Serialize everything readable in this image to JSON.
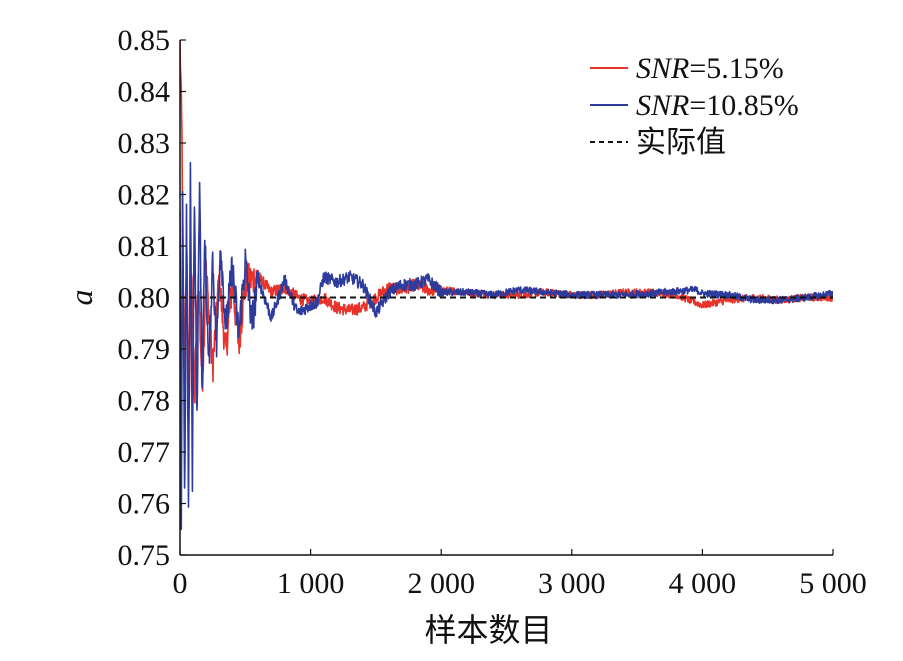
{
  "chart_data": {
    "type": "line",
    "xlabel": "样本数目",
    "ylabel": "a",
    "xlim": [
      0,
      5000
    ],
    "ylim": [
      0.75,
      0.85
    ],
    "grid": false,
    "legend_position": "top-right",
    "x_ticks": [
      0,
      1000,
      2000,
      3000,
      4000,
      5000
    ],
    "x_tick_labels": [
      "0",
      "1 000",
      "2 000",
      "3 000",
      "4 000",
      "5 000"
    ],
    "y_ticks": [
      0.75,
      0.76,
      0.77,
      0.78,
      0.79,
      0.8,
      0.81,
      0.82,
      0.83,
      0.84,
      0.85
    ],
    "y_tick_labels": [
      "0.75",
      "0.76",
      "0.77",
      "0.78",
      "0.79",
      "0.80",
      "0.81",
      "0.82",
      "0.83",
      "0.84",
      "0.85"
    ],
    "legend": [
      {
        "italic": "SNR",
        "text": "=5.15%",
        "color": "#e8332a",
        "dash": "solid"
      },
      {
        "italic": "SNR",
        "text": "=10.85%",
        "color": "#2c3b9c",
        "dash": "solid"
      },
      {
        "italic": "",
        "text": "实际值",
        "color": "#111111",
        "dash": "dashed"
      }
    ],
    "series": [
      {
        "name": "SNR=5.15%",
        "color": "#e8332a",
        "x": [
          0,
          15,
          30,
          50,
          70,
          90,
          110,
          140,
          170,
          200,
          250,
          300,
          350,
          400,
          450,
          500,
          600,
          700,
          800,
          900,
          1000,
          1100,
          1200,
          1300,
          1400,
          1500,
          1600,
          1700,
          1800,
          1900,
          2000,
          2200,
          2400,
          2600,
          2800,
          3000,
          3200,
          3400,
          3600,
          3800,
          4000,
          4200,
          4400,
          4600,
          4800,
          5000
        ],
        "y": [
          0.85,
          0.83,
          0.785,
          0.81,
          0.78,
          0.806,
          0.779,
          0.804,
          0.783,
          0.805,
          0.786,
          0.804,
          0.789,
          0.803,
          0.791,
          0.803,
          0.804,
          0.801,
          0.802,
          0.8,
          0.799,
          0.8,
          0.798,
          0.7975,
          0.798,
          0.8,
          0.802,
          0.8015,
          0.8025,
          0.8015,
          0.8015,
          0.801,
          0.8005,
          0.8005,
          0.801,
          0.8005,
          0.8005,
          0.801,
          0.801,
          0.8005,
          0.7985,
          0.7995,
          0.8,
          0.7995,
          0.8,
          0.8
        ]
      },
      {
        "name": "SNR=10.85%",
        "color": "#2c3b9c",
        "x": [
          0,
          10,
          20,
          35,
          50,
          65,
          80,
          95,
          110,
          130,
          150,
          170,
          190,
          220,
          250,
          280,
          310,
          350,
          400,
          450,
          500,
          550,
          600,
          700,
          800,
          900,
          1000,
          1050,
          1100,
          1200,
          1300,
          1400,
          1500,
          1600,
          1700,
          1800,
          1900,
          2000,
          2200,
          2400,
          2600,
          2800,
          3000,
          3200,
          3400,
          3600,
          3800,
          3950,
          4000,
          4200,
          4400,
          4600,
          4800,
          5000
        ],
        "y": [
          0.82,
          0.755,
          0.823,
          0.76,
          0.815,
          0.757,
          0.827,
          0.765,
          0.82,
          0.775,
          0.825,
          0.78,
          0.812,
          0.786,
          0.808,
          0.79,
          0.811,
          0.794,
          0.806,
          0.793,
          0.807,
          0.795,
          0.8035,
          0.796,
          0.8035,
          0.797,
          0.7985,
          0.799,
          0.804,
          0.803,
          0.804,
          0.8025,
          0.797,
          0.801,
          0.8025,
          0.8025,
          0.8035,
          0.801,
          0.801,
          0.8005,
          0.8015,
          0.801,
          0.8005,
          0.8005,
          0.8005,
          0.8008,
          0.8012,
          0.8015,
          0.8008,
          0.8005,
          0.7995,
          0.7995,
          0.8,
          0.8008
        ]
      },
      {
        "name": "实际值",
        "color": "#111111",
        "dash": "dashed",
        "x": [
          0,
          5000
        ],
        "y": [
          0.8,
          0.8
        ]
      }
    ]
  }
}
